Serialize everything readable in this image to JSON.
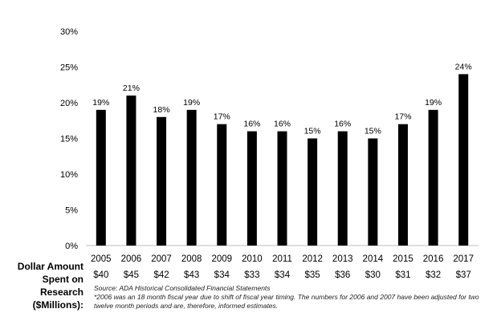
{
  "chart_data": {
    "type": "bar",
    "categories": [
      "2005",
      "2006",
      "2007",
      "2008",
      "2009",
      "2010",
      "2011",
      "2012",
      "2013",
      "2014",
      "2015",
      "2016",
      "2017"
    ],
    "values": [
      19,
      21,
      18,
      19,
      17,
      16,
      16,
      15,
      16,
      15,
      17,
      19,
      24
    ],
    "value_labels": [
      "19%",
      "21%",
      "18%",
      "19%",
      "17%",
      "16%",
      "16%",
      "15%",
      "16%",
      "15%",
      "17%",
      "19%",
      "24%"
    ],
    "ylim": [
      0,
      30
    ],
    "yticks": [
      0,
      5,
      10,
      15,
      20,
      25,
      30
    ],
    "ytick_labels": [
      "0%",
      "5%",
      "10%",
      "15%",
      "20%",
      "25%",
      "30%"
    ],
    "bar_color": "#000000",
    "grid": false,
    "secondary_row": {
      "label": "Dollar Amount Spent on Research ($Millions):",
      "values": [
        "$40",
        "$45",
        "$42",
        "$43",
        "$34",
        "$33",
        "$34",
        "$35",
        "$36",
        "$30",
        "$31",
        "$32",
        "$37"
      ]
    }
  },
  "footnotes": {
    "source": "Source: ADA Historical Consolidated Financial Statements",
    "note": "*2006 was an 18 month fiscal year due to shift of fiscal year timing.  The numbers for 2006 and 2007 have been adjusted for two twelve month periods and are, therefore, informed estimates."
  }
}
